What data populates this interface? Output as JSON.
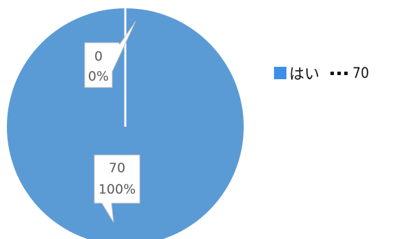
{
  "chart_data": {
    "type": "pie",
    "categories": [
      "はい",
      ""
    ],
    "values": [
      70,
      0
    ],
    "percentages": [
      "100%",
      "0%"
    ],
    "value_labels": [
      "70",
      "0"
    ],
    "colors": [
      "#5B9BD5",
      "#5B9BD5"
    ],
    "legend_position": "right",
    "legend": {
      "label": "はい",
      "value": "70",
      "swatch_color": "#3d8fe6"
    }
  }
}
